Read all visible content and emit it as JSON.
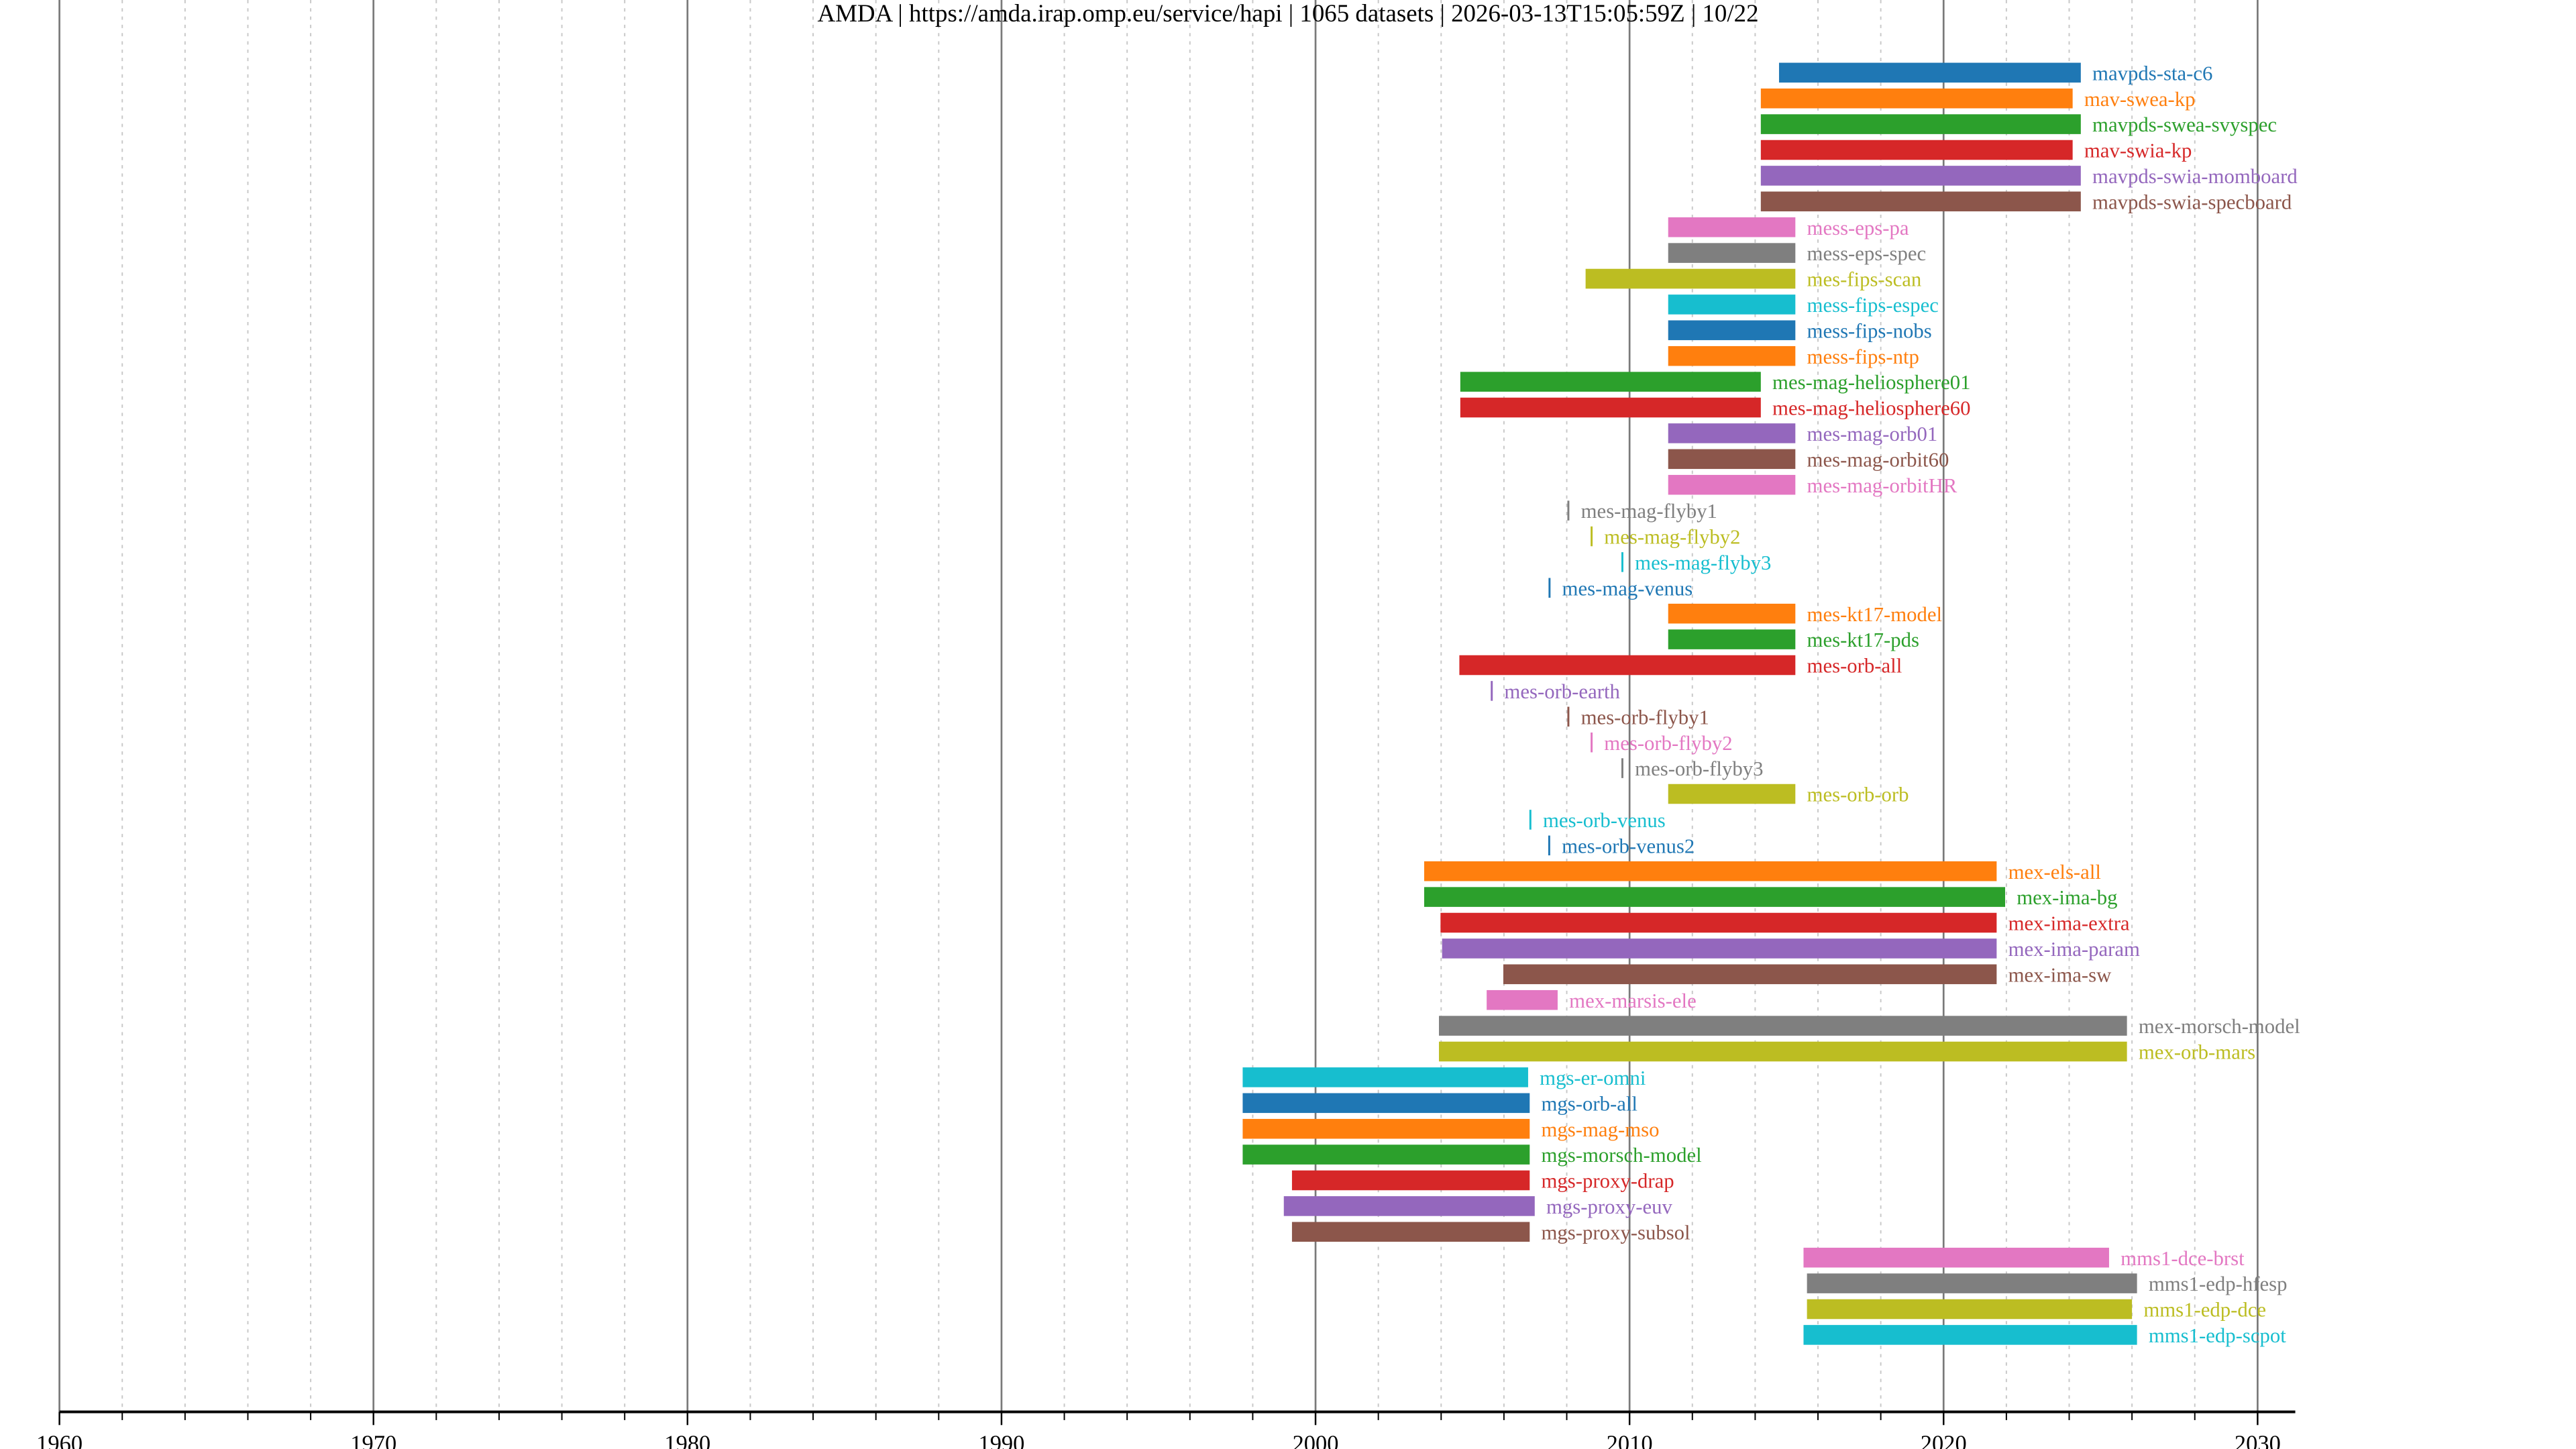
{
  "chart_data": {
    "type": "timeline-bar",
    "title": "AMDA | https://amda.irap.omp.eu/service/hapi | 1065 datasets | 2026-03-13T15:05:59Z | 10/22",
    "xlabel": "",
    "ylabel": "",
    "xlim": [
      1960,
      2031.2
    ],
    "x_ticks": [
      1960,
      1970,
      1980,
      1990,
      2000,
      2010,
      2020,
      2030
    ],
    "x_minor_step": 2,
    "grid": true,
    "palette": [
      "#1f77b4",
      "#ff7f0e",
      "#2ca02c",
      "#d62728",
      "#9467bd",
      "#8c564b",
      "#e377c2",
      "#7f7f7f",
      "#bcbd22",
      "#17becf"
    ],
    "datasets": [
      {
        "name": "mavpds-sta-c6",
        "start": 2014.76,
        "end": 2024.37
      },
      {
        "name": "mav-swea-kp",
        "start": 2014.18,
        "end": 2024.11
      },
      {
        "name": "mavpds-swea-svyspec",
        "start": 2014.18,
        "end": 2024.37
      },
      {
        "name": "mav-swia-kp",
        "start": 2014.18,
        "end": 2024.11
      },
      {
        "name": "mavpds-swia-momboard",
        "start": 2014.18,
        "end": 2024.37
      },
      {
        "name": "mavpds-swia-specboard",
        "start": 2014.18,
        "end": 2024.37
      },
      {
        "name": "mess-eps-pa",
        "start": 2011.23,
        "end": 2015.28
      },
      {
        "name": "mess-eps-spec",
        "start": 2011.23,
        "end": 2015.28
      },
      {
        "name": "mes-fips-scan",
        "start": 2008.6,
        "end": 2015.28
      },
      {
        "name": "mess-fips-espec",
        "start": 2011.23,
        "end": 2015.28
      },
      {
        "name": "mess-fips-nobs",
        "start": 2011.23,
        "end": 2015.28
      },
      {
        "name": "mess-fips-ntp",
        "start": 2011.23,
        "end": 2015.28
      },
      {
        "name": "mes-mag-heliosphere01",
        "start": 2004.61,
        "end": 2014.18
      },
      {
        "name": "mes-mag-heliosphere60",
        "start": 2004.61,
        "end": 2014.18
      },
      {
        "name": "mes-mag-orb01",
        "start": 2011.23,
        "end": 2015.28
      },
      {
        "name": "mes-mag-orbit60",
        "start": 2011.23,
        "end": 2015.28
      },
      {
        "name": "mes-mag-orbitHR",
        "start": 2011.23,
        "end": 2015.28
      },
      {
        "name": "mes-mag-flyby1",
        "start": 2008.02,
        "end": 2008.04
      },
      {
        "name": "mes-mag-flyby2",
        "start": 2008.76,
        "end": 2008.78
      },
      {
        "name": "mes-mag-flyby3",
        "start": 2009.74,
        "end": 2009.76
      },
      {
        "name": "mes-mag-venus",
        "start": 2007.42,
        "end": 2007.44
      },
      {
        "name": "mes-kt17-model",
        "start": 2011.23,
        "end": 2015.28
      },
      {
        "name": "mes-kt17-pds",
        "start": 2011.23,
        "end": 2015.28
      },
      {
        "name": "mes-orb-all",
        "start": 2004.58,
        "end": 2015.28
      },
      {
        "name": "mes-orb-earth",
        "start": 2005.58,
        "end": 2005.62
      },
      {
        "name": "mes-orb-flyby1",
        "start": 2008.02,
        "end": 2008.05
      },
      {
        "name": "mes-orb-flyby2",
        "start": 2008.76,
        "end": 2008.79
      },
      {
        "name": "mes-orb-flyby3",
        "start": 2009.74,
        "end": 2009.77
      },
      {
        "name": "mes-orb-orb",
        "start": 2011.23,
        "end": 2015.28
      },
      {
        "name": "mes-orb-venus",
        "start": 2006.81,
        "end": 2006.84
      },
      {
        "name": "mes-orb-venus2",
        "start": 2007.41,
        "end": 2007.44
      },
      {
        "name": "mex-els-all",
        "start": 2003.46,
        "end": 2021.69
      },
      {
        "name": "mex-ima-bg",
        "start": 2003.46,
        "end": 2021.96
      },
      {
        "name": "mex-ima-extra",
        "start": 2003.98,
        "end": 2021.69
      },
      {
        "name": "mex-ima-param",
        "start": 2004.03,
        "end": 2021.69
      },
      {
        "name": "mex-ima-sw",
        "start": 2005.98,
        "end": 2021.69
      },
      {
        "name": "mex-marsis-ele",
        "start": 2005.45,
        "end": 2007.71
      },
      {
        "name": "mex-morsch-model",
        "start": 2003.93,
        "end": 2025.84
      },
      {
        "name": "mex-orb-mars",
        "start": 2003.93,
        "end": 2025.84
      },
      {
        "name": "mgs-er-omni",
        "start": 1997.68,
        "end": 2006.77
      },
      {
        "name": "mgs-orb-all",
        "start": 1997.68,
        "end": 2006.82
      },
      {
        "name": "mgs-mag-mso",
        "start": 1997.68,
        "end": 2006.82
      },
      {
        "name": "mgs-morsch-model",
        "start": 1997.68,
        "end": 2006.82
      },
      {
        "name": "mgs-proxy-drap",
        "start": 1999.25,
        "end": 2006.82
      },
      {
        "name": "mgs-proxy-euv",
        "start": 1998.99,
        "end": 2006.98
      },
      {
        "name": "mgs-proxy-subsol",
        "start": 1999.25,
        "end": 2006.82
      },
      {
        "name": "mms1-dce-brst",
        "start": 2015.54,
        "end": 2025.27
      },
      {
        "name": "mms1-edp-hfesp",
        "start": 2015.65,
        "end": 2026.16
      },
      {
        "name": "mms1-edp-dce",
        "start": 2015.65,
        "end": 2026.0
      },
      {
        "name": "mms1-edp-scpot",
        "start": 2015.54,
        "end": 2026.16
      }
    ]
  }
}
